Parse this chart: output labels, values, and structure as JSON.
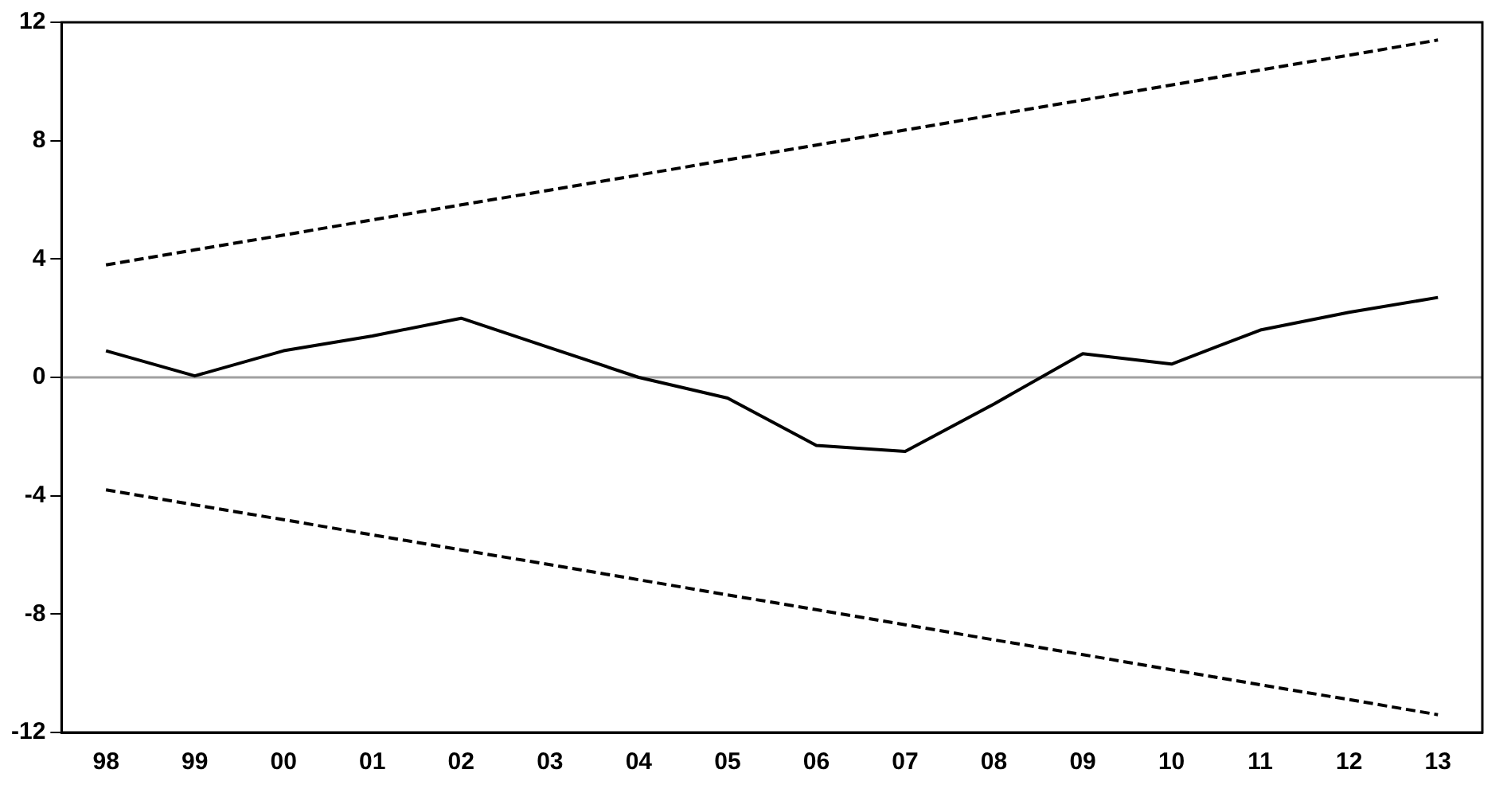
{
  "chart_data": {
    "type": "line",
    "categories": [
      "98",
      "99",
      "00",
      "01",
      "02",
      "03",
      "04",
      "05",
      "06",
      "07",
      "08",
      "09",
      "10",
      "11",
      "12",
      "13"
    ],
    "series": [
      {
        "color": "#000000",
        "values": [
          0.9,
          0.05,
          0.9,
          1.4,
          2.0,
          1.0,
          0,
          -0.7,
          -2.3,
          -2.5,
          -0.9,
          0.8,
          0.45,
          1.6,
          2.2,
          2.7
        ]
      },
      {
        "color": "#000000",
        "line_style": "dashed",
        "values": [
          3.8,
          4.31,
          4.81,
          5.32,
          5.83,
          6.33,
          6.84,
          7.35,
          7.85,
          8.36,
          8.87,
          9.37,
          9.88,
          10.39,
          10.89,
          11.4
        ]
      },
      {
        "color": "#000000",
        "line_style": "dashed",
        "values": [
          -3.8,
          -4.31,
          -4.81,
          -5.32,
          -5.83,
          -6.33,
          -6.84,
          -7.35,
          -7.85,
          -8.36,
          -8.87,
          -9.37,
          -9.88,
          -10.39,
          -10.89,
          -11.4
        ]
      }
    ],
    "ylim": [
      -12,
      12
    ],
    "yticks": [
      -12,
      -8,
      -4,
      0,
      4,
      8,
      12
    ],
    "grid": false,
    "legend": false,
    "marker": "none",
    "ref_lines": [
      {
        "axis": "y",
        "value": 0,
        "color": "#a0a0a0"
      }
    ]
  }
}
